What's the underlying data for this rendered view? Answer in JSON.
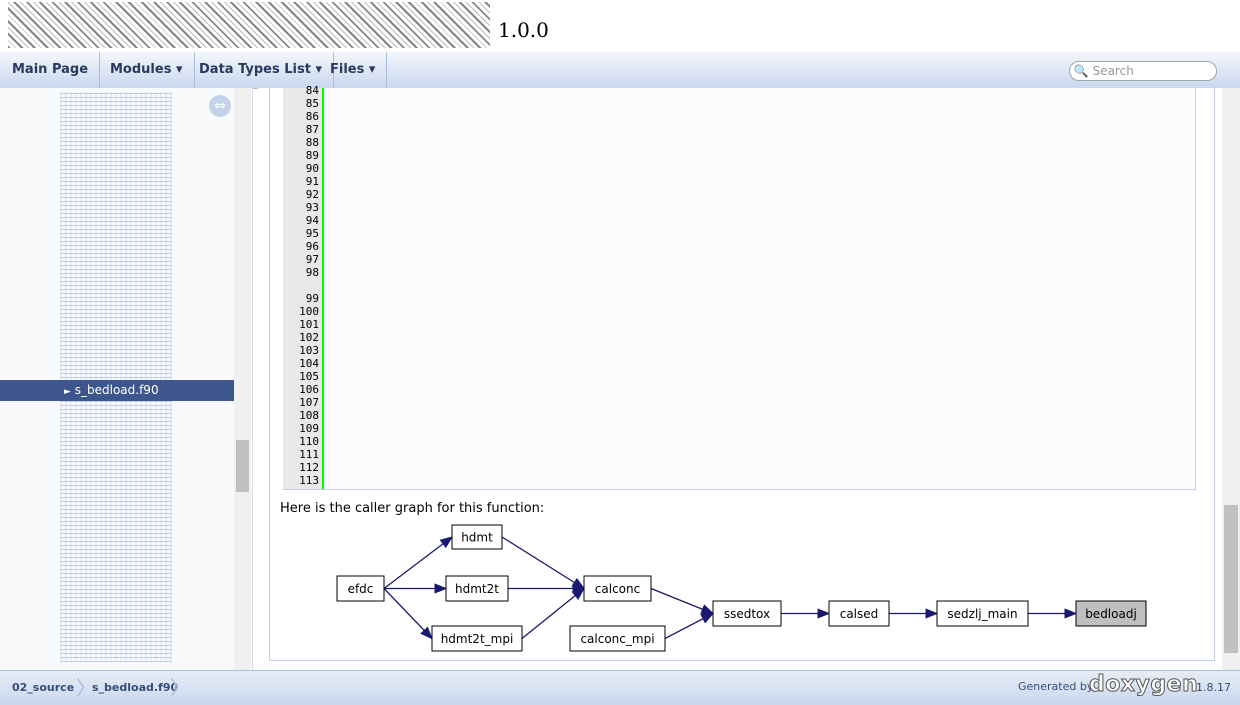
{
  "header": {
    "version": "1.0.0"
  },
  "nav": {
    "items": [
      "Main Page",
      "Modules",
      "Data Types List",
      "Files"
    ],
    "search_placeholder": "Search"
  },
  "tree": {
    "selected": "s_bedload.f90"
  },
  "code": {
    "line_numbers": [
      84,
      85,
      86,
      87,
      88,
      89,
      90,
      91,
      92,
      93,
      94,
      95,
      96,
      97,
      98,
      99,
      100,
      101,
      102,
      103,
      104,
      105,
      106,
      107,
      108,
      109,
      110,
      111,
      112,
      113
    ]
  },
  "graph": {
    "caption": "Here is the caller graph for this function:",
    "nodes": [
      {
        "label": "efdc"
      },
      {
        "label": "hdmt"
      },
      {
        "label": "hdmt2t"
      },
      {
        "label": "hdmt2t_mpi"
      },
      {
        "label": "calconc"
      },
      {
        "label": "calconc_mpi"
      },
      {
        "label": "ssedtox"
      },
      {
        "label": "calsed"
      },
      {
        "label": "sedzlj_main"
      },
      {
        "label": "bedloadj"
      }
    ]
  },
  "footer": {
    "breadcrumbs": [
      "02_source",
      "s_bedload.f90"
    ],
    "generated_by": "Generated by",
    "brand": "doxygen",
    "version": "1.8.17"
  }
}
